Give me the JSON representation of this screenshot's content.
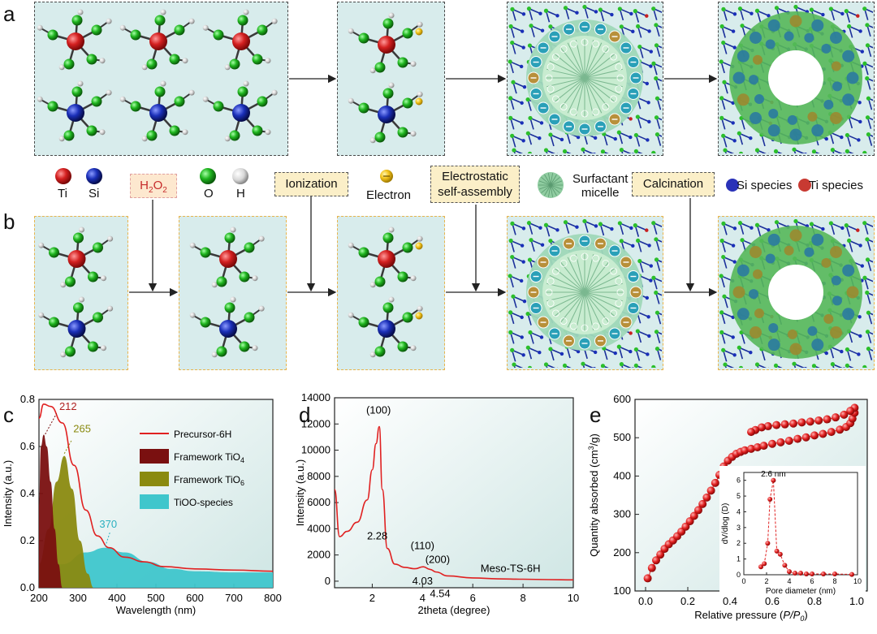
{
  "panels": {
    "a": "a",
    "b": "b",
    "c": "c",
    "d": "d",
    "e": "e"
  },
  "legend": {
    "ti": "Ti",
    "si": "Si",
    "h2o2": "H",
    "h2o2_sub1": "2",
    "h2o2_mid": "O",
    "h2o2_sub2": "2",
    "o": "O",
    "h": "H",
    "ionization": "Ionization",
    "electron": "Electron",
    "electrostatic_l1": "Electrostatic",
    "electrostatic_l2": "self-assembly",
    "surfactant_l1": "Surfactant",
    "surfactant_l2": "micelle",
    "calcination": "Calcination",
    "si_species": "Si species",
    "ti_species": "Ti species"
  },
  "colors": {
    "ti": "#d42020",
    "si": "#1a2fb8",
    "o": "#1fb51f",
    "h": "#e8e8e8",
    "electron": "#f2c21a",
    "box_bg": "#d8ecec",
    "curve_red": "#e02020"
  },
  "chart_data": [
    {
      "type": "area",
      "xlabel": "Wavelength (nm)",
      "ylabel": "Intensity (a.u.)",
      "xlim": [
        200,
        800
      ],
      "ylim": [
        0,
        0.8
      ],
      "xticks": [
        "200",
        "300",
        "400",
        "500",
        "600",
        "700",
        "800"
      ],
      "yticks": [
        "0.0",
        "0.2",
        "0.4",
        "0.6",
        "0.8"
      ],
      "series": [
        {
          "name": "Precursor-6H",
          "kind": "line",
          "color": "#e02020",
          "peak": 212,
          "x": [
            200,
            212,
            230,
            260,
            290,
            320,
            350,
            380,
            420,
            470,
            520,
            600,
            700,
            800
          ],
          "y": [
            0.72,
            0.78,
            0.77,
            0.7,
            0.52,
            0.33,
            0.22,
            0.17,
            0.13,
            0.11,
            0.09,
            0.08,
            0.075,
            0.07
          ]
        },
        {
          "name": "Framework TiO",
          "sub": "4",
          "kind": "fill",
          "color": "#7a1010",
          "peak": 212,
          "x": [
            200,
            205,
            212,
            220,
            230,
            240,
            250,
            260
          ],
          "y": [
            0.35,
            0.6,
            0.65,
            0.6,
            0.45,
            0.25,
            0.1,
            0.0
          ]
        },
        {
          "name": "Framework TiO",
          "sub": "6",
          "kind": "fill",
          "color": "#8a8a10",
          "peak": 265,
          "x": [
            200,
            225,
            245,
            265,
            285,
            305,
            325,
            340
          ],
          "y": [
            0.1,
            0.25,
            0.45,
            0.56,
            0.42,
            0.2,
            0.06,
            0.0
          ]
        },
        {
          "name": "TiOO-species",
          "kind": "fill",
          "color": "#3fc6cc",
          "peak": 370,
          "x": [
            200,
            260,
            320,
            370,
            420,
            480,
            540,
            600,
            700,
            800
          ],
          "y": [
            0.07,
            0.1,
            0.15,
            0.17,
            0.15,
            0.11,
            0.08,
            0.07,
            0.065,
            0.065
          ]
        }
      ],
      "annotations": [
        "212",
        "265",
        "370"
      ]
    },
    {
      "type": "line",
      "xlabel": "2theta (degree)",
      "ylabel": "Intensity (a.u.)",
      "xlim": [
        0.5,
        10
      ],
      "ylim": [
        -500,
        14000
      ],
      "xticks": [
        "2",
        "4",
        "6",
        "8",
        "10"
      ],
      "yticks": [
        "0",
        "2000",
        "4000",
        "6000",
        "8000",
        "10000",
        "12000",
        "14000"
      ],
      "series": [
        {
          "name": "Meso-TS-6H",
          "x": [
            0.5,
            0.7,
            1.0,
            1.4,
            1.8,
            2.0,
            2.15,
            2.28,
            2.4,
            2.6,
            2.9,
            3.3,
            3.7,
            4.03,
            4.3,
            4.54,
            5,
            6,
            7,
            8,
            9,
            10
          ],
          "y": [
            7000,
            3400,
            3800,
            4500,
            6200,
            8500,
            10500,
            11800,
            7000,
            2500,
            1300,
            1050,
            950,
            1100,
            900,
            700,
            400,
            250,
            180,
            150,
            120,
            100
          ]
        }
      ],
      "annotations": {
        "p100": "(100)",
        "p110": "(110)",
        "p200": "(200)",
        "v228": "2.28",
        "v403": "4.03",
        "v454": "4.54"
      }
    },
    {
      "type": "scatter",
      "xlabel": "Relative pressure (",
      "xlabel_italic": "P/P",
      "xlabel_sub": "0",
      "xlabel_end": ")",
      "ylabel": "Quantity absorbed (cm",
      "ylabel_sup": "3",
      "ylabel_end": "/g)",
      "xlim": [
        -0.05,
        1.05
      ],
      "ylim": [
        100,
        600
      ],
      "xticks": [
        "0.0",
        "0.2",
        "0.4",
        "0.6",
        "0.8",
        "1.0"
      ],
      "yticks": [
        "100",
        "200",
        "300",
        "400",
        "500",
        "600"
      ],
      "adsorption": {
        "x": [
          0.01,
          0.03,
          0.05,
          0.07,
          0.09,
          0.11,
          0.13,
          0.15,
          0.17,
          0.19,
          0.21,
          0.23,
          0.25,
          0.27,
          0.29,
          0.31,
          0.33,
          0.35,
          0.37,
          0.39,
          0.41,
          0.43,
          0.45,
          0.47,
          0.5,
          0.53,
          0.56,
          0.6,
          0.64,
          0.68,
          0.72,
          0.76,
          0.8,
          0.84,
          0.88,
          0.92,
          0.95,
          0.97,
          0.98,
          0.99
        ],
        "y": [
          133,
          160,
          180,
          195,
          210,
          222,
          232,
          243,
          255,
          268,
          282,
          296,
          311,
          327,
          344,
          362,
          382,
          403,
          425,
          440,
          450,
          458,
          463,
          467,
          471,
          475,
          479,
          484,
          488,
          492,
          497,
          501,
          506,
          510,
          515,
          521,
          528,
          538,
          550,
          565
        ]
      },
      "desorption": {
        "x": [
          0.99,
          0.97,
          0.94,
          0.9,
          0.86,
          0.82,
          0.78,
          0.74,
          0.7,
          0.66,
          0.62,
          0.58,
          0.55,
          0.52,
          0.5
        ],
        "y": [
          578,
          570,
          560,
          553,
          548,
          545,
          542,
          540,
          537,
          535,
          533,
          530,
          527,
          520,
          515
        ]
      },
      "inset": {
        "xlabel": "Pore diameter (nm)",
        "ylabel": "dV/dlog (D)",
        "xlim": [
          0,
          10
        ],
        "ylim": [
          0,
          6.5
        ],
        "xticks": [
          "0",
          "2",
          "4",
          "6",
          "8",
          "10"
        ],
        "yticks": [
          "0",
          "1",
          "2",
          "3",
          "4",
          "5",
          "6"
        ],
        "peak_label": "2.6 nm",
        "x": [
          1.5,
          1.8,
          2.1,
          2.3,
          2.6,
          2.9,
          3.2,
          3.6,
          4.0,
          4.5,
          5.0,
          5.5,
          6.0,
          7.0,
          8.0,
          9.5
        ],
        "y": [
          0.5,
          0.7,
          2.0,
          4.8,
          6.0,
          1.5,
          1.3,
          0.6,
          0.2,
          0.1,
          0.1,
          0.05,
          0.05,
          0.05,
          0.05,
          0.02
        ]
      }
    }
  ]
}
